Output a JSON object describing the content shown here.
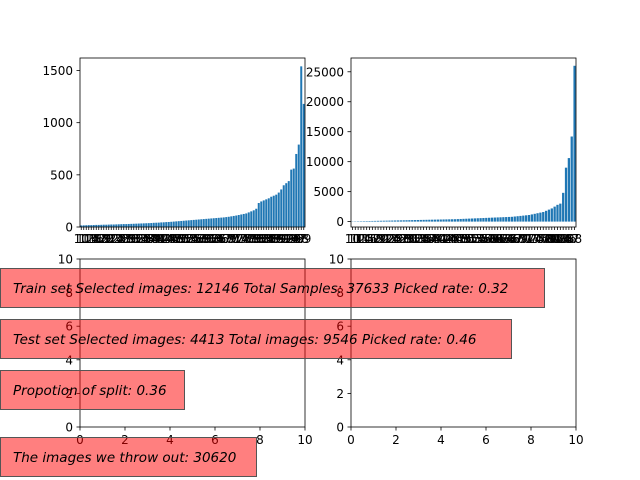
{
  "colors": {
    "bar": "#1f77b4",
    "axis": "#000000",
    "box_fill": "rgba(255,0,0,0.5)"
  },
  "chart_data": [
    {
      "type": "bar",
      "ylim": [
        0,
        1620
      ],
      "yticks": [
        0,
        500,
        1000,
        1500
      ],
      "xticks_note": "dense overlapping category labels",
      "values": [
        15,
        16,
        17,
        18,
        18,
        19,
        20,
        20,
        21,
        22,
        22,
        23,
        24,
        24,
        25,
        26,
        27,
        28,
        28,
        29,
        30,
        31,
        32,
        33,
        34,
        35,
        36,
        37,
        38,
        40,
        41,
        42,
        44,
        45,
        47,
        48,
        50,
        52,
        54,
        56,
        58,
        60,
        62,
        64,
        66,
        68,
        70,
        72,
        74,
        76,
        78,
        80,
        82,
        84,
        86,
        88,
        90,
        92,
        95,
        98,
        102,
        106,
        110,
        115,
        120,
        125,
        130,
        140,
        150,
        160,
        175,
        230,
        245,
        255,
        265,
        275,
        290,
        300,
        310,
        330,
        360,
        400,
        420,
        440,
        550,
        560,
        700,
        790,
        1540,
        1180
      ]
    },
    {
      "type": "bar",
      "ylim": [
        -900,
        27300
      ],
      "yticks": [
        0,
        5000,
        10000,
        15000,
        20000,
        25000
      ],
      "xticks_note": "dense overlapping category labels",
      "values": [
        40,
        50,
        60,
        70,
        80,
        90,
        100,
        110,
        120,
        130,
        140,
        150,
        160,
        170,
        180,
        190,
        200,
        210,
        220,
        230,
        240,
        250,
        260,
        270,
        280,
        290,
        300,
        310,
        320,
        330,
        340,
        350,
        360,
        370,
        380,
        390,
        400,
        420,
        440,
        460,
        480,
        500,
        520,
        540,
        560,
        580,
        600,
        620,
        640,
        660,
        680,
        700,
        720,
        740,
        760,
        780,
        800,
        850,
        900,
        950,
        1000,
        1050,
        1100,
        1200,
        1300,
        1400,
        1500,
        1600,
        1800,
        2000,
        2200,
        2500,
        2800,
        3000,
        4800,
        9000,
        10600,
        14200,
        26000
      ]
    },
    {
      "type": "empty",
      "xlim": [
        0,
        10
      ],
      "ylim": [
        0,
        10
      ],
      "xticks": [
        0,
        2,
        4,
        6,
        8,
        10
      ],
      "yticks": [
        0,
        2,
        4,
        6,
        8,
        10
      ]
    },
    {
      "type": "empty",
      "xlim": [
        0,
        10
      ],
      "ylim": [
        0,
        10
      ],
      "xticks": [
        0,
        2,
        4,
        6,
        8,
        10
      ],
      "yticks": [
        0,
        2,
        4,
        6,
        8,
        10
      ]
    }
  ],
  "annotations": {
    "train": "Train set Selected images: 12146  Total Samples: 37633  Picked rate: 0.32",
    "test": "Test set Selected images: 4413  Total images: 9546  Picked rate: 0.46",
    "split": "Propotion of split: 0.36",
    "thrown": "The images we throw out: 30620"
  }
}
